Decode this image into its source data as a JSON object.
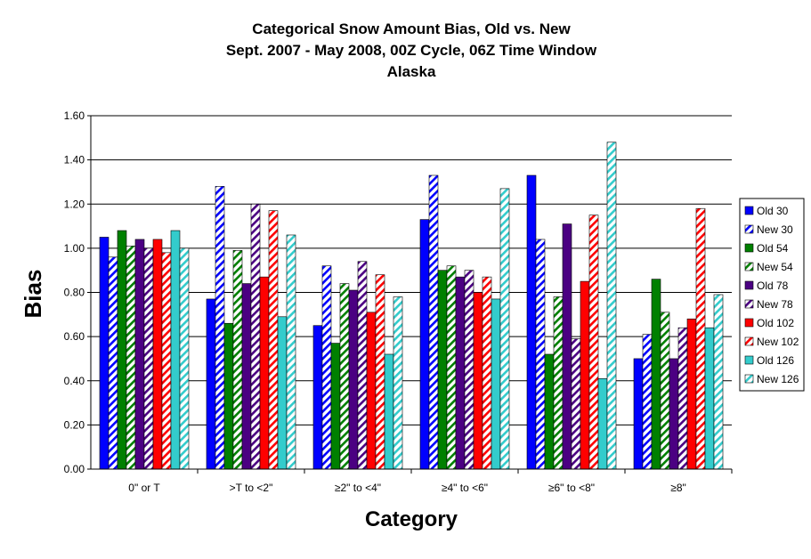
{
  "chart_data": {
    "type": "bar",
    "title": [
      "Categorical Snow Amount Bias, Old vs. New",
      "Sept. 2007 - May 2008, 00Z Cycle, 06Z Time Window",
      "Alaska"
    ],
    "xlabel": "Category",
    "ylabel": "Bias",
    "ylim": [
      0,
      1.6
    ],
    "yticks": [
      "0.00",
      "0.20",
      "0.40",
      "0.60",
      "0.80",
      "1.00",
      "1.20",
      "1.40",
      "1.60"
    ],
    "grid": true,
    "legend_position": "right",
    "categories": [
      "0\" or T",
      ">T to <2\"",
      "≥2\" to <4\"",
      "≥4\" to <6\"",
      "≥6\" to <8\"",
      "≥8\""
    ],
    "series": [
      {
        "name": "Old 30",
        "color": "#0000ff",
        "style": "solid",
        "values": [
          1.05,
          0.77,
          0.65,
          1.13,
          1.33,
          0.5
        ]
      },
      {
        "name": "New 30",
        "color": "#0000ff",
        "style": "hatched",
        "values": [
          0.96,
          1.28,
          0.92,
          1.33,
          1.04,
          0.61
        ]
      },
      {
        "name": "Old 54",
        "color": "#008000",
        "style": "solid",
        "values": [
          1.08,
          0.66,
          0.57,
          0.9,
          0.52,
          0.86
        ]
      },
      {
        "name": "New 54",
        "color": "#008000",
        "style": "hatched",
        "values": [
          1.01,
          0.99,
          0.84,
          0.92,
          0.78,
          0.71
        ]
      },
      {
        "name": "Old 78",
        "color": "#4b0082",
        "style": "solid",
        "values": [
          1.04,
          0.84,
          0.81,
          0.87,
          1.11,
          0.5
        ]
      },
      {
        "name": "New 78",
        "color": "#4b0082",
        "style": "hatched",
        "values": [
          1.0,
          1.2,
          0.94,
          0.9,
          0.59,
          0.64
        ]
      },
      {
        "name": "Old 102",
        "color": "#ff0000",
        "style": "solid",
        "values": [
          1.04,
          0.87,
          0.71,
          0.8,
          0.85,
          0.68
        ]
      },
      {
        "name": "New 102",
        "color": "#ff0000",
        "style": "hatched",
        "values": [
          0.98,
          1.17,
          0.88,
          0.87,
          1.15,
          1.18
        ]
      },
      {
        "name": "Old 126",
        "color": "#33cccc",
        "style": "solid",
        "values": [
          1.08,
          0.69,
          0.52,
          0.77,
          0.41,
          0.64
        ]
      },
      {
        "name": "New 126",
        "color": "#33cccc",
        "style": "hatched",
        "values": [
          1.0,
          1.06,
          0.78,
          1.27,
          1.48,
          0.79
        ]
      }
    ]
  }
}
